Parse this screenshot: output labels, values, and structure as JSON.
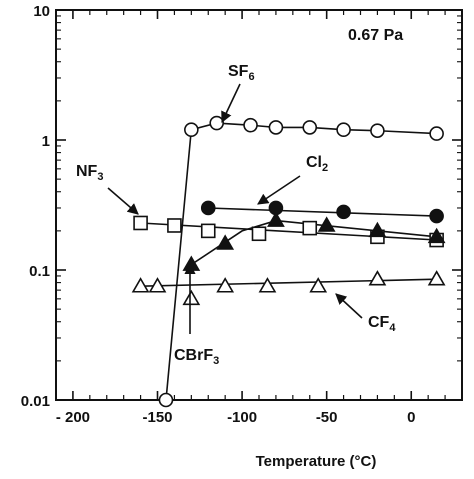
{
  "chart_data": {
    "type": "scatter",
    "title": "",
    "condition": "0.67 Pa",
    "xlabel": "Temperature (°C)",
    "ylabel": "",
    "xlim": [
      -210,
      30
    ],
    "ylim": [
      0.01,
      10
    ],
    "y_scale": "log",
    "grid": false,
    "x_ticks": [
      -200,
      -150,
      -100,
      -50,
      0
    ],
    "x_tick_labels": [
      "- 200",
      "-150",
      "-100",
      "-50",
      "0"
    ],
    "y_ticks": [
      0.01,
      0.1,
      1,
      10
    ],
    "y_tick_labels": [
      "0.01",
      "0.1",
      "1",
      "10"
    ],
    "series": [
      {
        "name": "SF6",
        "display_main": "SF",
        "display_sub": "6",
        "marker": "open-circle",
        "x": [
          -145,
          -130,
          -115,
          -95,
          -80,
          -60,
          -40,
          -20,
          15
        ],
        "y": [
          0.01,
          1.2,
          1.35,
          1.3,
          1.25,
          1.25,
          1.2,
          1.18,
          1.12
        ]
      },
      {
        "name": "NF3",
        "display_main": "NF",
        "display_sub": "3",
        "marker": "open-square",
        "x": [
          -160,
          -140,
          -120,
          -90,
          -60,
          -20,
          15
        ],
        "y": [
          0.23,
          0.22,
          0.2,
          0.19,
          0.21,
          0.18,
          0.17
        ]
      },
      {
        "name": "Cl2",
        "display_main": "Cl",
        "display_sub": "2",
        "marker": "filled-circle",
        "x": [
          -120,
          -80,
          -40,
          15
        ],
        "y": [
          0.3,
          0.3,
          0.28,
          0.26
        ]
      },
      {
        "name": "CBrF3",
        "display_main": "CBrF",
        "display_sub": "3",
        "marker": "filled-triangle",
        "x": [
          -130,
          -110,
          -80,
          -50,
          -20,
          15
        ],
        "y": [
          0.11,
          0.16,
          0.24,
          0.22,
          0.2,
          0.18
        ]
      },
      {
        "name": "CF4",
        "display_main": "CF",
        "display_sub": "4",
        "marker": "open-triangle",
        "x": [
          -160,
          -150,
          -130,
          -110,
          -85,
          -55,
          -20,
          15
        ],
        "y": [
          0.075,
          0.075,
          0.06,
          0.075,
          0.075,
          0.075,
          0.085,
          0.085
        ]
      }
    ]
  }
}
